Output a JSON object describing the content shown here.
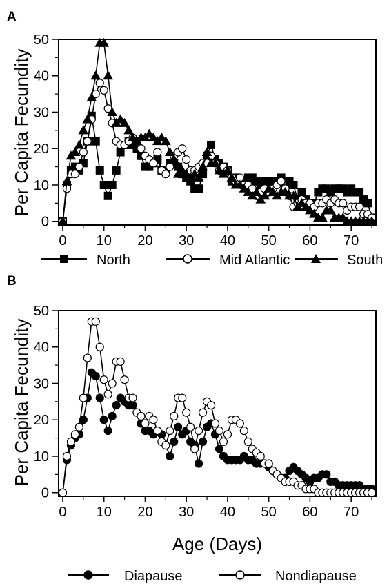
{
  "figure": {
    "panel_a_label": "A",
    "panel_b_label": "B"
  },
  "chart_data": [
    {
      "type": "line",
      "panel": "A",
      "title": "",
      "xlabel": "",
      "ylabel": "Per Capita Fecundity",
      "xlim": [
        -1,
        76
      ],
      "ylim": [
        -1,
        50
      ],
      "xticks": [
        0,
        10,
        20,
        30,
        40,
        50,
        60,
        70
      ],
      "yticks": [
        0,
        10,
        20,
        30,
        40,
        50
      ],
      "legend_position": "bottom",
      "series": [
        {
          "name": "North",
          "marker": "square",
          "fill": "#000000",
          "x": [
            0,
            1,
            2,
            3,
            4,
            5,
            6,
            7,
            8,
            9,
            10,
            11,
            12,
            13,
            14,
            15,
            16,
            17,
            18,
            19,
            20,
            21,
            22,
            23,
            24,
            25,
            26,
            27,
            28,
            29,
            30,
            31,
            32,
            33,
            34,
            35,
            36,
            37,
            38,
            39,
            40,
            41,
            42,
            43,
            44,
            45,
            46,
            47,
            48,
            49,
            50,
            51,
            52,
            53,
            54,
            55,
            56,
            57,
            58,
            59,
            60,
            61,
            62,
            63,
            64,
            65,
            66,
            67,
            68,
            69,
            70,
            71,
            72,
            73,
            74,
            75
          ],
          "y": [
            0,
            10,
            14,
            15,
            14,
            16,
            22,
            29,
            22,
            14,
            10,
            7,
            10,
            14,
            19,
            21,
            22,
            21,
            20,
            18,
            15,
            15,
            16,
            17,
            14,
            14,
            16,
            16,
            15,
            13,
            12,
            11,
            9,
            9,
            13,
            18,
            21,
            17,
            16,
            15,
            14,
            11,
            12,
            11,
            10,
            12,
            12,
            11,
            10,
            11,
            11,
            11,
            11,
            12,
            9,
            11,
            10,
            6,
            8,
            6,
            4,
            5,
            8,
            9,
            9,
            8,
            9,
            9,
            9,
            8,
            9,
            8,
            8,
            6,
            5,
            1
          ]
        },
        {
          "name": "Mid Atlantic",
          "marker": "circle",
          "fill": "#ffffff",
          "x": [
            0,
            1,
            2,
            3,
            4,
            5,
            6,
            7,
            8,
            9,
            10,
            11,
            12,
            13,
            14,
            15,
            16,
            17,
            18,
            19,
            20,
            21,
            22,
            23,
            24,
            25,
            26,
            27,
            28,
            29,
            30,
            31,
            32,
            33,
            34,
            35,
            36,
            37,
            38,
            39,
            40,
            41,
            42,
            43,
            44,
            45,
            46,
            47,
            48,
            49,
            50,
            51,
            52,
            53,
            54,
            55,
            56,
            57,
            58,
            59,
            60,
            61,
            62,
            63,
            64,
            65,
            66,
            67,
            68,
            69,
            70,
            71,
            72,
            73,
            74,
            75
          ],
          "y": [
            0,
            9,
            13,
            13,
            15,
            19,
            22,
            28,
            35,
            38,
            36,
            31,
            27,
            22,
            21,
            21,
            22,
            23,
            22,
            20,
            18,
            17,
            16,
            19,
            14,
            13,
            15,
            18,
            19,
            20,
            17,
            14,
            14,
            15,
            16,
            16,
            18,
            16,
            14,
            15,
            14,
            12,
            11,
            12,
            10,
            10,
            9,
            7,
            8,
            9,
            8,
            9,
            10,
            11,
            9,
            7,
            4,
            5,
            6,
            5,
            5,
            4,
            5,
            5,
            6,
            5,
            6,
            5,
            5,
            3,
            4,
            4,
            4,
            2,
            2,
            1
          ]
        },
        {
          "name": "South",
          "marker": "triangle",
          "fill": "#000000",
          "x": [
            0,
            1,
            2,
            3,
            4,
            5,
            6,
            7,
            8,
            9,
            10,
            11,
            12,
            13,
            14,
            15,
            16,
            17,
            18,
            19,
            20,
            21,
            22,
            23,
            24,
            25,
            26,
            27,
            28,
            29,
            30,
            31,
            32,
            33,
            34,
            35,
            36,
            37,
            38,
            39,
            40,
            41,
            42,
            43,
            44,
            45,
            46,
            47,
            48,
            49,
            50,
            51,
            52,
            53,
            54,
            55,
            56,
            57,
            58,
            59,
            60,
            61,
            62,
            63,
            64,
            65,
            66,
            67,
            68,
            69,
            70,
            71,
            72,
            73,
            74,
            75
          ],
          "y": [
            0,
            11,
            18,
            19,
            21,
            25,
            28,
            34,
            40,
            49,
            49,
            40,
            30,
            27,
            28,
            27,
            25,
            23,
            22,
            23,
            23,
            24,
            23,
            22,
            23,
            22,
            19,
            17,
            13,
            14,
            13,
            12,
            13,
            12,
            15,
            19,
            16,
            16,
            14,
            13,
            14,
            12,
            10,
            10,
            9,
            8,
            7,
            8,
            6,
            7,
            9,
            8,
            7,
            8,
            8,
            7,
            7,
            4,
            5,
            4,
            3,
            2,
            1,
            1,
            3,
            3,
            1,
            1,
            1,
            0,
            0,
            0,
            0,
            0,
            0,
            0
          ]
        }
      ]
    },
    {
      "type": "line",
      "panel": "B",
      "title": "",
      "xlabel": "Age (Days)",
      "ylabel": "Per Capita Fecundity",
      "xlim": [
        -1,
        76
      ],
      "ylim": [
        -1,
        50
      ],
      "xticks": [
        0,
        10,
        20,
        30,
        40,
        50,
        60,
        70
      ],
      "yticks": [
        0,
        10,
        20,
        30,
        40,
        50
      ],
      "legend_position": "bottom",
      "series": [
        {
          "name": "Diapause",
          "marker": "circle",
          "fill": "#000000",
          "x": [
            0,
            1,
            2,
            3,
            4,
            5,
            6,
            7,
            8,
            9,
            10,
            11,
            12,
            13,
            14,
            15,
            16,
            17,
            18,
            19,
            20,
            21,
            22,
            23,
            24,
            25,
            26,
            27,
            28,
            29,
            30,
            31,
            32,
            33,
            34,
            35,
            36,
            37,
            38,
            39,
            40,
            41,
            42,
            43,
            44,
            45,
            46,
            47,
            48,
            49,
            50,
            51,
            52,
            53,
            54,
            55,
            56,
            57,
            58,
            59,
            60,
            61,
            62,
            63,
            64,
            65,
            66,
            67,
            68,
            69,
            70,
            71,
            72,
            73,
            74,
            75
          ],
          "y": [
            0,
            9,
            13,
            15,
            16,
            20,
            26,
            33,
            32,
            26,
            20,
            17,
            21,
            24,
            26,
            25,
            24,
            24,
            22,
            19,
            17,
            17,
            16,
            17,
            16,
            13,
            10,
            14,
            18,
            16,
            17,
            14,
            13,
            8,
            14,
            18,
            19,
            16,
            12,
            10,
            9,
            9,
            9,
            9,
            10,
            9,
            9,
            8,
            8,
            8,
            7,
            6,
            5,
            4,
            4,
            6,
            7,
            6,
            5,
            4,
            3,
            4,
            4,
            5,
            5,
            3,
            3,
            2,
            2,
            2,
            2,
            2,
            2,
            1,
            1,
            1
          ]
        },
        {
          "name": "Nondiapause",
          "marker": "circle",
          "fill": "#ffffff",
          "x": [
            0,
            1,
            2,
            3,
            4,
            5,
            6,
            7,
            8,
            9,
            10,
            11,
            12,
            13,
            14,
            15,
            16,
            17,
            18,
            19,
            20,
            21,
            22,
            23,
            24,
            25,
            26,
            27,
            28,
            29,
            30,
            31,
            32,
            33,
            34,
            35,
            36,
            37,
            38,
            39,
            40,
            41,
            42,
            43,
            44,
            45,
            46,
            47,
            48,
            49,
            50,
            51,
            52,
            53,
            54,
            55,
            56,
            57,
            58,
            59,
            60,
            61,
            62,
            63,
            64,
            65,
            66,
            67,
            68,
            69,
            70,
            71,
            72,
            73,
            74,
            75
          ],
          "y": [
            0,
            10,
            14,
            16,
            18,
            26,
            37,
            47,
            47,
            40,
            31,
            27,
            30,
            36,
            36,
            31,
            26,
            26,
            22,
            21,
            19,
            21,
            20,
            17,
            14,
            13,
            17,
            21,
            26,
            26,
            22,
            18,
            12,
            17,
            22,
            25,
            24,
            19,
            17,
            14,
            16,
            20,
            20,
            19,
            17,
            14,
            12,
            11,
            10,
            8,
            8,
            6,
            5,
            4,
            3,
            3,
            3,
            2,
            2,
            1,
            1,
            1,
            0,
            0,
            0,
            0,
            0,
            0,
            0,
            0,
            0,
            0,
            0,
            0,
            0,
            0
          ]
        }
      ]
    }
  ]
}
